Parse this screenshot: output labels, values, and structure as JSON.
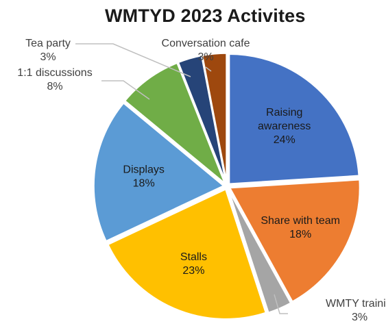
{
  "chart_data": {
    "type": "pie",
    "title": "WMTYD 2023 Activites",
    "slices": [
      {
        "label": "Raising awareness",
        "label_lines": [
          "Raising",
          "awareness"
        ],
        "pct_label": "24%",
        "value": 24,
        "color": "#4472c4",
        "label_pos": "inside"
      },
      {
        "label": "Share with team",
        "label_lines": [
          "Share with team"
        ],
        "pct_label": "18%",
        "value": 18,
        "color": "#ed7d31",
        "label_pos": "inside"
      },
      {
        "label": "WMTY training",
        "label_lines": [
          "WMTY training"
        ],
        "pct_label": "3%",
        "value": 3,
        "color": "#a5a5a5",
        "label_pos": "outside-bottom-right"
      },
      {
        "label": "Stalls",
        "label_lines": [
          "Stalls"
        ],
        "pct_label": "23%",
        "value": 23,
        "color": "#ffc000",
        "label_pos": "inside"
      },
      {
        "label": "Displays",
        "label_lines": [
          "Displays"
        ],
        "pct_label": "18%",
        "value": 18,
        "color": "#5b9bd5",
        "label_pos": "inside"
      },
      {
        "label": "1:1 discussions",
        "label_lines": [
          "1:1 discussions"
        ],
        "pct_label": "8%",
        "value": 8,
        "color": "#70ad47",
        "label_pos": "outside-left"
      },
      {
        "label": "Tea party",
        "label_lines": [
          "Tea party"
        ],
        "pct_label": "3%",
        "value": 3,
        "color": "#264478",
        "label_pos": "outside-top-left"
      },
      {
        "label": "Conversation cafe",
        "label_lines": [
          "Conversation cafe"
        ],
        "pct_label": "3%",
        "value": 3,
        "color": "#9e480e",
        "label_pos": "outside-top"
      }
    ],
    "legend": "none"
  }
}
